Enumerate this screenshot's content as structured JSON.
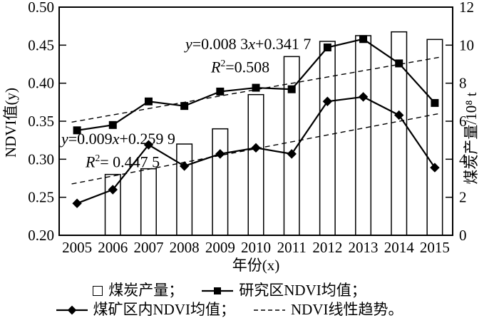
{
  "colors": {
    "ink": "#000000",
    "background": "#ffffff"
  },
  "chart_data": {
    "type": "combo-bar-line",
    "x": [
      2005,
      2006,
      2007,
      2008,
      2009,
      2010,
      2011,
      2012,
      2013,
      2014,
      2015
    ],
    "xlabel": "年份(x)",
    "ylabel_left": "NDVI值(y)",
    "ylabel_right": "煤炭产量/10⁸ t",
    "ylim_left": [
      0.2,
      0.5
    ],
    "yticks_left": [
      "0.20",
      "0.25",
      "0.30",
      "0.35",
      "0.40",
      "0.45",
      "0.50"
    ],
    "ylim_right": [
      0,
      12
    ],
    "yticks_right": [
      0,
      2,
      4,
      6,
      8,
      10,
      12
    ],
    "grid": "off",
    "series": [
      {
        "name": "煤炭产量",
        "type": "bar",
        "axis": "right",
        "values": [
          null,
          3.2,
          3.5,
          4.8,
          5.6,
          7.4,
          9.4,
          10.2,
          10.5,
          10.7,
          10.3
        ]
      },
      {
        "name": "研究区NDVI均值",
        "type": "line",
        "marker": "square",
        "axis": "left",
        "values": [
          0.338,
          0.345,
          0.376,
          0.37,
          0.389,
          0.394,
          0.392,
          0.447,
          0.458,
          0.426,
          0.374
        ]
      },
      {
        "name": "煤矿区内NDVI均值",
        "type": "line",
        "marker": "diamond",
        "axis": "left",
        "values": [
          0.242,
          0.26,
          0.319,
          0.291,
          0.307,
          0.315,
          0.307,
          0.376,
          0.382,
          0.358,
          0.289
        ]
      }
    ],
    "trendlines": [
      {
        "name": "研究区NDVI线性趋势",
        "slope": 0.0083,
        "intercept": 0.3417,
        "equation": "y=0.008 3x+0.341 7",
        "r2": 0.508
      },
      {
        "name": "煤矿区NDVI线性趋势",
        "slope": 0.009,
        "intercept": 0.2599,
        "equation": "y=0.009x+0.259 9",
        "r2": 0.4475
      }
    ]
  },
  "annotations": {
    "study_eq": {
      "y": "y",
      "a": "=0.008 3",
      "x": "x",
      "b": "+0.341 7"
    },
    "study_r2": {
      "R": "R",
      "sup": "2",
      "val": "=0.508"
    },
    "mining_eq": {
      "y": "y",
      "a": "=0.009",
      "x": "x",
      "b": "+0.259 9"
    },
    "mining_r2": {
      "R": "R",
      "sup": "2",
      "val": "= 0.447 5"
    }
  },
  "legend": {
    "items": [
      {
        "symbol": "open-square",
        "label": "煤炭产量；"
      },
      {
        "symbol": "line-square",
        "label": "研究区NDVI均值；"
      },
      {
        "symbol": "line-diamond",
        "label": "煤矿区内NDVI均值；"
      },
      {
        "symbol": "dashed-line",
        "label": "NDVI线性趋势。"
      }
    ]
  }
}
